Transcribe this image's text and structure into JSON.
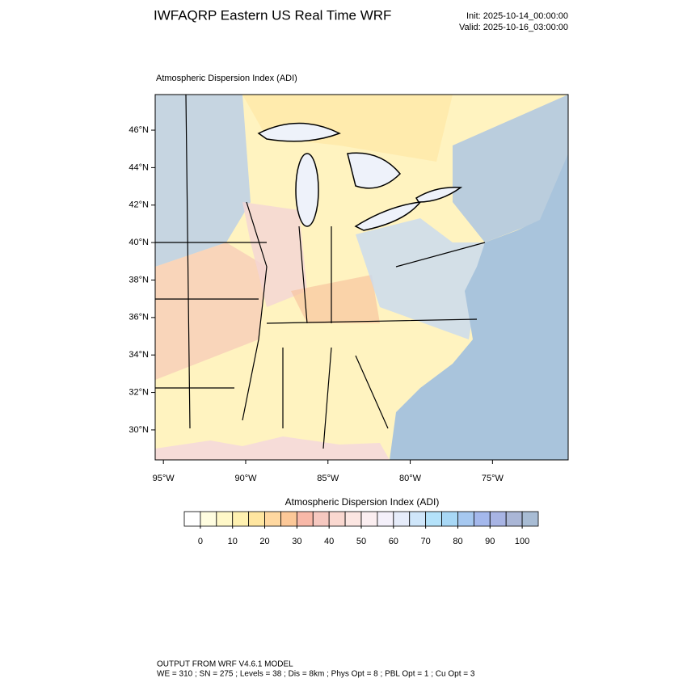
{
  "header": {
    "title": "IWFAQRP Eastern US Real Time WRF",
    "init": "Init: 2025-10-14_00:00:00",
    "valid": "Valid: 2025-10-16_03:00:00"
  },
  "map": {
    "field_label": "Atmospheric Dispersion Index   (ADI)",
    "xlim": [
      -95.5,
      -70.4
    ],
    "ylim": [
      28.4,
      47.9
    ],
    "lat_ticks": [
      {
        "value": 30,
        "label": "30°N"
      },
      {
        "value": 32,
        "label": "32°N"
      },
      {
        "value": 34,
        "label": "34°N"
      },
      {
        "value": 36,
        "label": "36°N"
      },
      {
        "value": 38,
        "label": "38°N"
      },
      {
        "value": 40,
        "label": "40°N"
      },
      {
        "value": 42,
        "label": "42°N"
      },
      {
        "value": 44,
        "label": "44°N"
      },
      {
        "value": 46,
        "label": "46°N"
      }
    ],
    "lon_ticks": [
      {
        "value": -95,
        "label": "95°W"
      },
      {
        "value": -90,
        "label": "90°W"
      },
      {
        "value": -85,
        "label": "85°W"
      },
      {
        "value": -80,
        "label": "80°W"
      },
      {
        "value": -75,
        "label": "75°W"
      }
    ]
  },
  "colorbar": {
    "title": "Atmospheric Dispersion Index  (ADI)",
    "range": [
      -5,
      105
    ],
    "ticks": [
      0,
      10,
      20,
      30,
      40,
      50,
      60,
      70,
      80,
      90,
      100
    ],
    "colors": [
      "#ffffff",
      "#fffde0",
      "#fff8c8",
      "#fff1b0",
      "#ffe6a0",
      "#ffd8a0",
      "#fcc898",
      "#f8b8a8",
      "#f6c8c0",
      "#fad8d0",
      "#fce6e2",
      "#fbeef0",
      "#f4f0fa",
      "#e6ecfa",
      "#cfe6fa",
      "#b4e2fa",
      "#a8d8f6",
      "#a6c8f0",
      "#a4b8ec",
      "#a8b4e4",
      "#aab6d6",
      "#a8bcd4"
    ]
  },
  "footer": {
    "line1": "OUTPUT FROM WRF V4.6.1 MODEL",
    "line2": "WE = 310 ; SN = 275 ; Levels = 38 ; Dis = 8km ; Phys Opt = 8 ; PBL Opt = 1 ; Cu Opt = 3"
  }
}
